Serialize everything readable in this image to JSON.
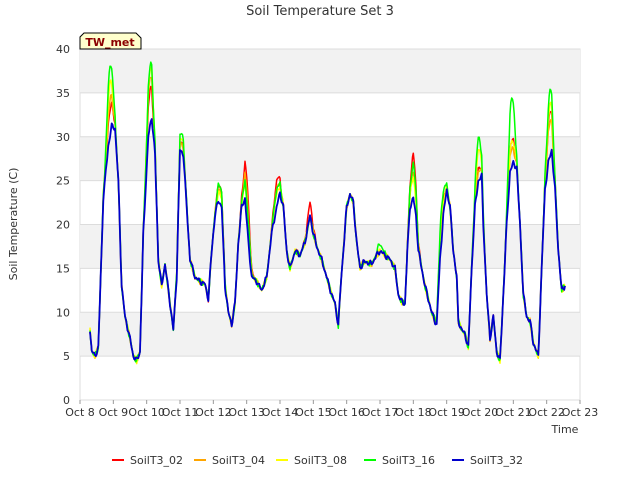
{
  "chart_data": {
    "type": "line",
    "title": "Soil Temperature Set 3",
    "xlabel": "Time",
    "ylabel": "Soil Temperature (C)",
    "badge": "TW_met",
    "ylim": [
      0,
      40
    ],
    "yticks": [
      "0",
      "5",
      "10",
      "15",
      "20",
      "25",
      "30",
      "35",
      "40"
    ],
    "xlim": [
      "Oct 8",
      "Oct 23"
    ],
    "xticks": [
      "Oct 8",
      "Oct 9",
      "Oct 10",
      "Oct 11",
      "Oct 12",
      "Oct 13",
      "Oct 14",
      "Oct 15",
      "Oct 16",
      "Oct 17",
      "Oct 18",
      "Oct 19",
      "Oct 20",
      "Oct 21",
      "Oct 22",
      "Oct 23"
    ],
    "grid": true,
    "legend_position": "bottom",
    "colors": {
      "SoilT3_02": "#ff0000",
      "SoilT3_04": "#ffa500",
      "SoilT3_08": "#ffff00",
      "SoilT3_16": "#00ff00",
      "SoilT3_32": "#0000cc"
    },
    "base_curve": [
      [
        0.3,
        8.0
      ],
      [
        0.35,
        5.6
      ],
      [
        0.45,
        5.0
      ],
      [
        0.55,
        6.0
      ],
      [
        0.7,
        23.0
      ],
      [
        0.85,
        29.0
      ],
      [
        0.95,
        31.2
      ],
      [
        1.05,
        31.0
      ],
      [
        1.15,
        25.0
      ],
      [
        1.25,
        13.0
      ],
      [
        1.35,
        9.5
      ],
      [
        1.5,
        7.0
      ],
      [
        1.6,
        5.0
      ],
      [
        1.7,
        4.5
      ],
      [
        1.8,
        5.5
      ],
      [
        1.9,
        19.0
      ],
      [
        2.05,
        30.0
      ],
      [
        2.15,
        32.3
      ],
      [
        2.25,
        28.0
      ],
      [
        2.35,
        16.0
      ],
      [
        2.45,
        13.0
      ],
      [
        2.55,
        15.5
      ],
      [
        2.7,
        11.0
      ],
      [
        2.8,
        8.0
      ],
      [
        2.9,
        14.0
      ],
      [
        3.0,
        28.5
      ],
      [
        3.1,
        28.0
      ],
      [
        3.2,
        22.0
      ],
      [
        3.3,
        16.0
      ],
      [
        3.45,
        14.0
      ],
      [
        3.6,
        13.5
      ],
      [
        3.75,
        13.2
      ],
      [
        3.85,
        11.5
      ],
      [
        3.95,
        17.0
      ],
      [
        4.05,
        21.0
      ],
      [
        4.15,
        22.8
      ],
      [
        4.25,
        22.0
      ],
      [
        4.35,
        13.0
      ],
      [
        4.45,
        10.0
      ],
      [
        4.55,
        8.6
      ],
      [
        4.65,
        11.0
      ],
      [
        4.75,
        18.0
      ],
      [
        4.85,
        22.0
      ],
      [
        4.95,
        23.0
      ],
      [
        5.05,
        18.0
      ],
      [
        5.15,
        14.0
      ],
      [
        5.3,
        13.5
      ],
      [
        5.45,
        12.5
      ],
      [
        5.6,
        14.0
      ],
      [
        5.75,
        19.0
      ],
      [
        5.9,
        22.0
      ],
      [
        6.0,
        23.6
      ],
      [
        6.1,
        22.0
      ],
      [
        6.2,
        17.0
      ],
      [
        6.3,
        15.0
      ],
      [
        6.45,
        17.0
      ],
      [
        6.6,
        16.5
      ],
      [
        6.75,
        18.0
      ],
      [
        6.9,
        21.0
      ],
      [
        7.0,
        19.0
      ],
      [
        7.1,
        17.5
      ],
      [
        7.25,
        16.0
      ],
      [
        7.4,
        14.0
      ],
      [
        7.55,
        12.0
      ],
      [
        7.65,
        11.0
      ],
      [
        7.75,
        8.5
      ],
      [
        7.82,
        13.0
      ],
      [
        7.9,
        17.0
      ],
      [
        8.0,
        22.0
      ],
      [
        8.1,
        23.5
      ],
      [
        8.2,
        22.5
      ],
      [
        8.3,
        18.0
      ],
      [
        8.4,
        15.0
      ],
      [
        8.5,
        15.7
      ],
      [
        8.6,
        15.7
      ],
      [
        8.75,
        15.5
      ],
      [
        8.9,
        16.5
      ],
      [
        9.0,
        17.0
      ],
      [
        9.15,
        16.5
      ],
      [
        9.3,
        16.0
      ],
      [
        9.45,
        15.0
      ],
      [
        9.55,
        12.0
      ],
      [
        9.65,
        11.2
      ],
      [
        9.75,
        11.0
      ],
      [
        9.82,
        17.0
      ],
      [
        9.9,
        22.0
      ],
      [
        10.0,
        23.0
      ],
      [
        10.08,
        21.0
      ],
      [
        10.15,
        17.0
      ],
      [
        10.25,
        15.0
      ],
      [
        10.35,
        13.0
      ],
      [
        10.45,
        11.5
      ],
      [
        10.55,
        10.0
      ],
      [
        10.65,
        9.0
      ],
      [
        10.7,
        8.5
      ],
      [
        10.8,
        16.0
      ],
      [
        10.9,
        21.0
      ],
      [
        11.0,
        24.0
      ],
      [
        11.1,
        22.0
      ],
      [
        11.2,
        17.0
      ],
      [
        11.3,
        14.0
      ],
      [
        11.35,
        9.0
      ],
      [
        11.45,
        8.0
      ],
      [
        11.55,
        7.5
      ],
      [
        11.65,
        6.0
      ],
      [
        11.75,
        15.0
      ],
      [
        11.85,
        22.0
      ],
      [
        11.95,
        25.0
      ],
      [
        12.05,
        25.5
      ],
      [
        12.1,
        20.0
      ],
      [
        12.2,
        12.0
      ],
      [
        12.3,
        7.0
      ],
      [
        12.4,
        9.5
      ],
      [
        12.5,
        5.5
      ],
      [
        12.6,
        4.5
      ],
      [
        12.7,
        12.0
      ],
      [
        12.8,
        20.0
      ],
      [
        12.9,
        26.0
      ],
      [
        13.0,
        27.0
      ],
      [
        13.1,
        26.5
      ],
      [
        13.2,
        20.0
      ],
      [
        13.3,
        12.0
      ],
      [
        13.4,
        9.5
      ],
      [
        13.5,
        9.0
      ],
      [
        13.6,
        6.5
      ],
      [
        13.7,
        5.5
      ],
      [
        13.75,
        5.0
      ],
      [
        13.85,
        15.0
      ],
      [
        13.95,
        24.0
      ],
      [
        14.05,
        27.0
      ],
      [
        14.15,
        28.5
      ],
      [
        14.25,
        24.0
      ],
      [
        14.35,
        17.0
      ],
      [
        14.45,
        12.5
      ],
      [
        14.55,
        13.0
      ]
    ],
    "series": [
      {
        "name": "SoilT3_02",
        "bumps": [
          [
            0.9,
            3.0
          ],
          [
            2.1,
            4.0
          ],
          [
            3.05,
            1.0
          ],
          [
            4.2,
            2.0
          ],
          [
            5.0,
            5.0
          ],
          [
            5.9,
            3.0
          ],
          [
            6.9,
            1.5
          ],
          [
            10.0,
            5.0
          ],
          [
            10.85,
            2.0
          ],
          [
            11.95,
            1.5
          ],
          [
            12.95,
            3.0
          ],
          [
            14.1,
            5.0
          ]
        ]
      },
      {
        "name": "SoilT3_04",
        "bumps": [
          [
            0.9,
            4.0
          ],
          [
            2.1,
            5.5
          ],
          [
            3.05,
            1.0
          ],
          [
            4.2,
            1.5
          ],
          [
            5.0,
            3.5
          ],
          [
            5.9,
            2.0
          ],
          [
            10.0,
            3.0
          ],
          [
            10.85,
            1.0
          ],
          [
            11.95,
            1.0
          ],
          [
            12.95,
            2.0
          ],
          [
            14.1,
            4.0
          ]
        ]
      },
      {
        "name": "SoilT3_08",
        "bumps": [
          [
            0.9,
            6.0
          ],
          [
            2.1,
            6.5
          ],
          [
            3.05,
            1.5
          ],
          [
            4.2,
            1.0
          ],
          [
            5.0,
            2.0
          ],
          [
            5.9,
            1.5
          ],
          [
            10.0,
            2.5
          ],
          [
            10.85,
            2.0
          ],
          [
            11.95,
            3.5
          ],
          [
            12.95,
            3.0
          ],
          [
            14.1,
            6.0
          ]
        ]
      },
      {
        "name": "SoilT3_16",
        "bumps": [
          [
            0.9,
            8.0
          ],
          [
            2.1,
            6.8
          ],
          [
            3.05,
            2.0
          ],
          [
            4.2,
            2.0
          ],
          [
            5.0,
            2.5
          ],
          [
            5.9,
            2.0
          ],
          [
            9.0,
            0.8
          ],
          [
            10.0,
            4.0
          ],
          [
            10.85,
            3.5
          ],
          [
            11.95,
            5.0
          ],
          [
            12.95,
            8.0
          ],
          [
            14.1,
            7.5
          ]
        ]
      },
      {
        "name": "SoilT3_32",
        "bumps": []
      }
    ]
  }
}
